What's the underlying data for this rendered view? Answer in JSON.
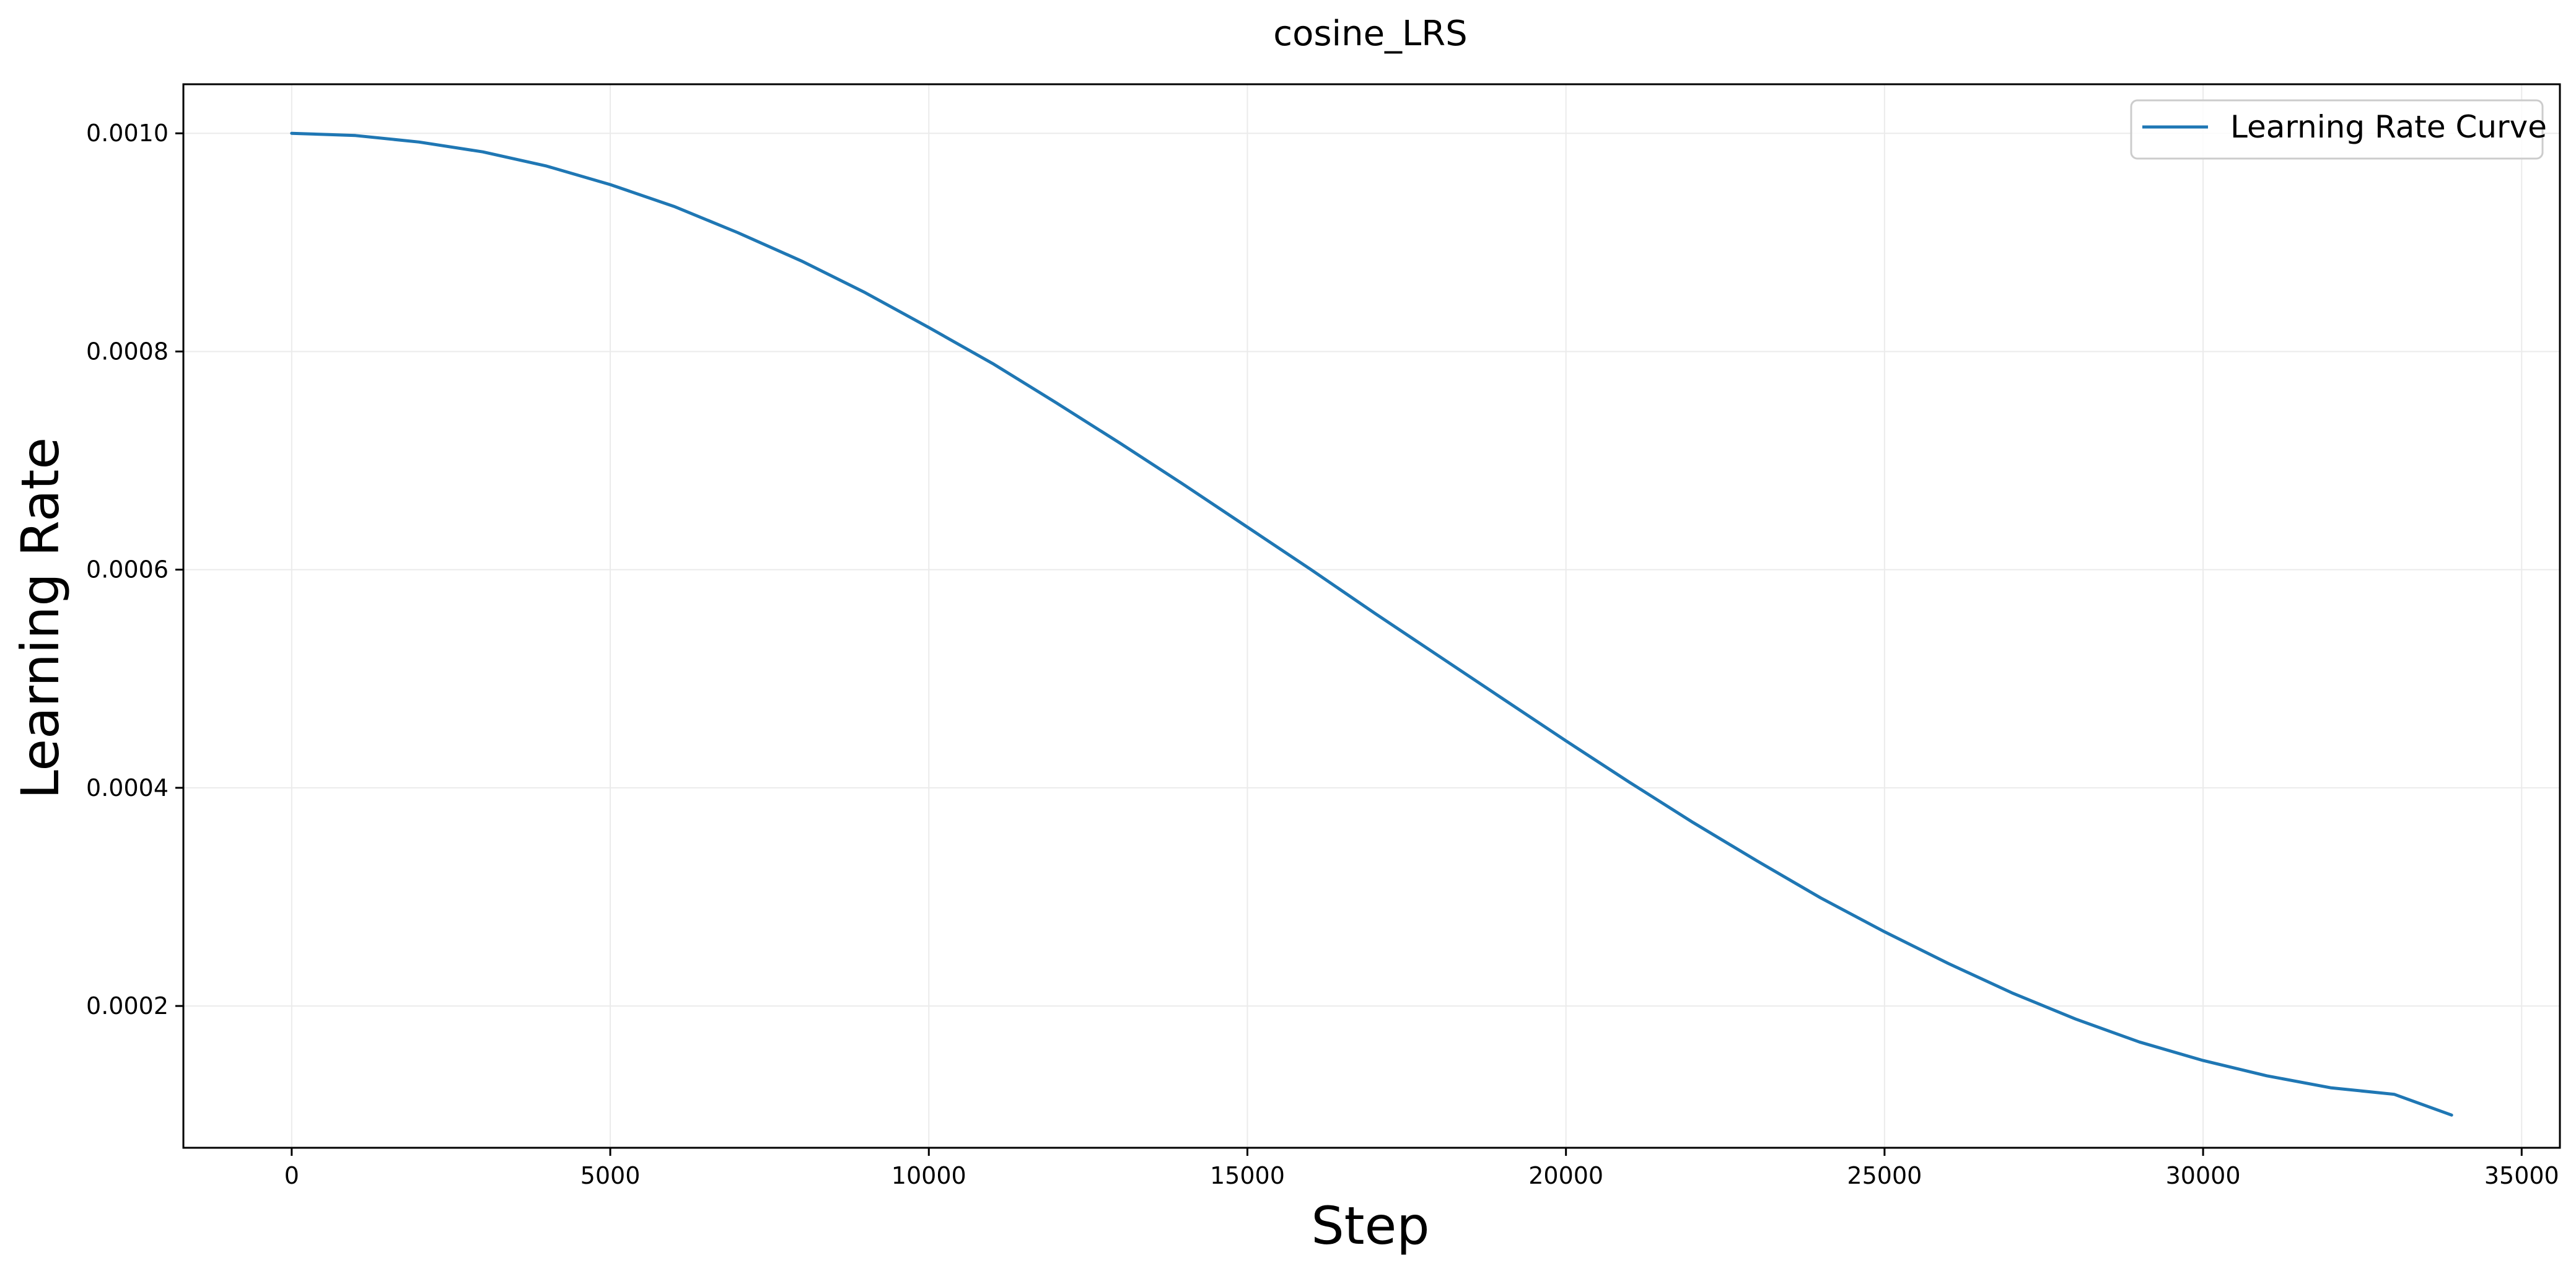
{
  "chart_data": {
    "type": "line",
    "title": "cosine_LRS",
    "xlabel": "Step",
    "ylabel": "Learning Rate",
    "xlim": [
      -1700,
      35600
    ],
    "ylim": [
      7e-05,
      0.001045
    ],
    "x_ticks": [
      0,
      5000,
      10000,
      15000,
      20000,
      25000,
      30000,
      35000
    ],
    "x_tick_labels": [
      "0",
      "5000",
      "10000",
      "15000",
      "20000",
      "25000",
      "30000",
      "35000"
    ],
    "y_ticks": [
      0.0002,
      0.0004,
      0.0006,
      0.0008,
      0.001
    ],
    "y_tick_labels": [
      "0.0002",
      "0.0004",
      "0.0006",
      "0.0008",
      "0.0010"
    ],
    "grid": true,
    "legend_position": "top-right",
    "series": [
      {
        "name": "Learning Rate Curve",
        "color": "#1f77b4",
        "x": [
          0,
          1000,
          2000,
          3000,
          4000,
          5000,
          6000,
          7000,
          8000,
          9000,
          10000,
          11000,
          12000,
          13000,
          14000,
          15000,
          16000,
          17000,
          18000,
          19000,
          20000,
          21000,
          22000,
          23000,
          24000,
          25000,
          26000,
          27000,
          28000,
          29000,
          30000,
          31000,
          32000,
          33000,
          33900
        ],
        "y": [
          0.001,
          0.000998,
          0.000992,
          0.000983,
          0.00097,
          0.000953,
          0.000933,
          0.000909,
          0.000883,
          0.000854,
          0.000822,
          0.000789,
          0.000753,
          0.000716,
          0.000678,
          0.000639,
          0.0006,
          0.00056,
          0.000521,
          0.000482,
          0.000443,
          0.000405,
          0.000368,
          0.000333,
          0.000299,
          0.000268,
          0.000239,
          0.000212,
          0.000188,
          0.000167,
          0.00015,
          0.000136,
          0.000125,
          0.000119,
          0.0001
        ]
      }
    ]
  }
}
